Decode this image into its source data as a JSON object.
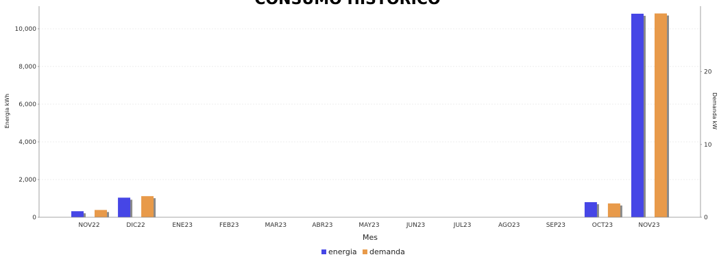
{
  "chart_data": {
    "type": "bar",
    "title": "CONSUMO HISTORICO",
    "xlabel": "Mes",
    "ylabel_left": "Energia kWh",
    "ylabel_right": "Demanda kW",
    "categories": [
      "NOV22",
      "DIC22",
      "ENE23",
      "FEB23",
      "MAR23",
      "ABR23",
      "MAY23",
      "JUN23",
      "JUL23",
      "AGO23",
      "SEP23",
      "OCT23",
      "NOV23"
    ],
    "series": [
      {
        "name": "energia",
        "axis": "left",
        "color": "#4646e6",
        "values": [
          320,
          1040,
          0,
          0,
          0,
          0,
          0,
          0,
          0,
          0,
          0,
          800,
          10800
        ]
      },
      {
        "name": "demanda",
        "axis": "right",
        "color": "#e89a4a",
        "values": [
          1.0,
          2.9,
          0,
          0,
          0,
          0,
          0,
          0,
          0,
          0,
          0,
          1.9,
          28.0
        ]
      }
    ],
    "ylim_left": [
      0,
      11200
    ],
    "yticks_left": [
      "0",
      "2,000",
      "4,000",
      "6,000",
      "8,000",
      "10,000"
    ],
    "ylim_right": [
      0,
      29.0
    ],
    "yticks_right": [
      "0",
      "10",
      "20"
    ],
    "grid": true,
    "legend": "bottom-center"
  }
}
